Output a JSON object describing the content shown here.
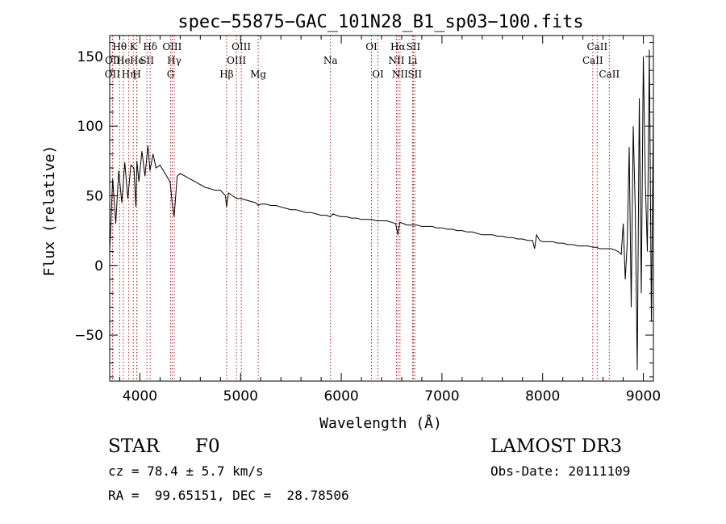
{
  "chart_data": {
    "type": "line",
    "title": "spec−55875−GAC_101N28_B1_sp03−100.fits",
    "xlabel": "Wavelength (Å)",
    "ylabel": "Flux (relative)",
    "xlim": [
      3700,
      9100
    ],
    "ylim": [
      -83,
      165
    ],
    "xticks": [
      4000,
      5000,
      6000,
      7000,
      8000,
      9000
    ],
    "xtick_labels": [
      "4000",
      "5000",
      "6000",
      "7000",
      "8000",
      "9000"
    ],
    "yticks": [
      -50,
      0,
      50,
      100,
      150
    ],
    "ytick_labels": [
      "−50",
      "0",
      "50",
      "100",
      "150"
    ],
    "series": [
      {
        "name": "spectrum",
        "x": [
          3700,
          3730,
          3760,
          3790,
          3820,
          3850,
          3880,
          3910,
          3940,
          3960,
          3970,
          3990,
          4020,
          4050,
          4080,
          4100,
          4130,
          4160,
          4200,
          4250,
          4300,
          4320,
          4340,
          4370,
          4400,
          4450,
          4500,
          4550,
          4600,
          4650,
          4700,
          4750,
          4800,
          4850,
          4860,
          4880,
          4920,
          4960,
          5000,
          5050,
          5100,
          5150,
          5175,
          5200,
          5250,
          5300,
          5350,
          5400,
          5450,
          5500,
          5550,
          5600,
          5650,
          5700,
          5750,
          5800,
          5850,
          5890,
          5920,
          5950,
          6000,
          6050,
          6100,
          6150,
          6200,
          6250,
          6300,
          6350,
          6400,
          6450,
          6500,
          6540,
          6563,
          6580,
          6620,
          6650,
          6700,
          6750,
          6800,
          6850,
          6900,
          6950,
          7000,
          7050,
          7100,
          7150,
          7200,
          7250,
          7300,
          7350,
          7400,
          7450,
          7500,
          7550,
          7600,
          7650,
          7700,
          7750,
          7800,
          7850,
          7900,
          7920,
          7940,
          7970,
          8000,
          8050,
          8100,
          8150,
          8200,
          8250,
          8300,
          8350,
          8400,
          8450,
          8500,
          8540,
          8560,
          8600,
          8640,
          8680,
          8720,
          8750,
          8780,
          8800,
          8820,
          8840,
          8860,
          8880,
          8900,
          8920,
          8940,
          8960,
          8980,
          9000,
          9020,
          9040,
          9060,
          9080,
          9100
        ],
        "values": [
          10,
          62,
          30,
          68,
          45,
          74,
          48,
          72,
          70,
          42,
          75,
          60,
          82,
          64,
          86,
          68,
          80,
          70,
          72,
          66,
          60,
          45,
          35,
          64,
          66,
          64,
          62,
          60,
          58,
          56,
          55,
          54,
          54,
          50,
          42,
          52,
          50,
          48,
          48,
          47,
          46,
          45,
          43,
          44,
          44,
          43,
          43,
          42,
          41,
          40,
          40,
          39,
          38,
          38,
          37,
          36,
          36,
          35,
          37,
          36,
          35,
          35,
          34,
          34,
          33,
          33,
          33,
          32,
          32,
          32,
          31,
          30,
          22,
          31,
          30,
          29,
          29,
          29,
          28,
          28,
          28,
          27,
          27,
          26,
          26,
          25,
          25,
          24,
          24,
          23,
          22,
          22,
          22,
          21,
          21,
          20,
          20,
          19,
          19,
          18,
          18,
          12,
          22,
          18,
          17,
          17,
          17,
          16,
          16,
          15,
          15,
          14,
          14,
          14,
          13,
          13,
          12,
          12,
          12,
          12,
          11,
          10,
          8,
          30,
          -10,
          15,
          85,
          -30,
          100,
          40,
          -75,
          120,
          -20,
          150,
          60,
          10,
          155,
          -40,
          110
        ]
      }
    ],
    "lines": [
      {
        "label": "Hθ",
        "x": 3798,
        "row": 1
      },
      {
        "label": "OII",
        "x": 3727,
        "row": 3
      },
      {
        "label": "OII",
        "x": 3730,
        "row": 2
      },
      {
        "label": "He",
        "x": 3835,
        "row": 2
      },
      {
        "label": "Hη",
        "x": 3889,
        "row": 3
      },
      {
        "label": "K",
        "x": 3934,
        "row": 1
      },
      {
        "label": "He",
        "x": 3970,
        "row": 2
      },
      {
        "label": "H",
        "x": 3969,
        "row": 3
      },
      {
        "label": "SII",
        "x": 4070,
        "row": 2
      },
      {
        "label": "Hδ",
        "x": 4102,
        "row": 1
      },
      {
        "label": "OIII",
        "x": 4320,
        "row": 1
      },
      {
        "label": "Hγ",
        "x": 4341,
        "row": 2
      },
      {
        "label": "G",
        "x": 4305,
        "row": 3
      },
      {
        "label": "Hβ",
        "x": 4861,
        "row": 3
      },
      {
        "label": "OIII",
        "x": 4959,
        "row": 2
      },
      {
        "label": "OIII",
        "x": 5007,
        "row": 1
      },
      {
        "label": "Mg",
        "x": 5175,
        "row": 3
      },
      {
        "label": "Na",
        "x": 5893,
        "row": 2
      },
      {
        "label": "OI",
        "x": 6300,
        "row": 1
      },
      {
        "label": "OI",
        "x": 6364,
        "row": 3
      },
      {
        "label": "Hα",
        "x": 6563,
        "row": 1
      },
      {
        "label": "NII",
        "x": 6548,
        "row": 2
      },
      {
        "label": "NII",
        "x": 6583,
        "row": 3
      },
      {
        "label": "SII",
        "x": 6716,
        "row": 1
      },
      {
        "label": "Li",
        "x": 6708,
        "row": 2
      },
      {
        "label": "SII",
        "x": 6731,
        "row": 3
      },
      {
        "label": "CaII",
        "x": 8542,
        "row": 1
      },
      {
        "label": "CaII",
        "x": 8498,
        "row": 2
      },
      {
        "label": "CaII",
        "x": 8662,
        "row": 3
      }
    ]
  },
  "info": {
    "object_class": "STAR",
    "subclass": "F0",
    "survey": "LAMOST DR3",
    "redshift": "cz = 78.4 ± 5.7 km/s",
    "obs_date": "Obs-Date: 20111109",
    "coords": "RA =  99.65151, DEC =  28.78506"
  }
}
